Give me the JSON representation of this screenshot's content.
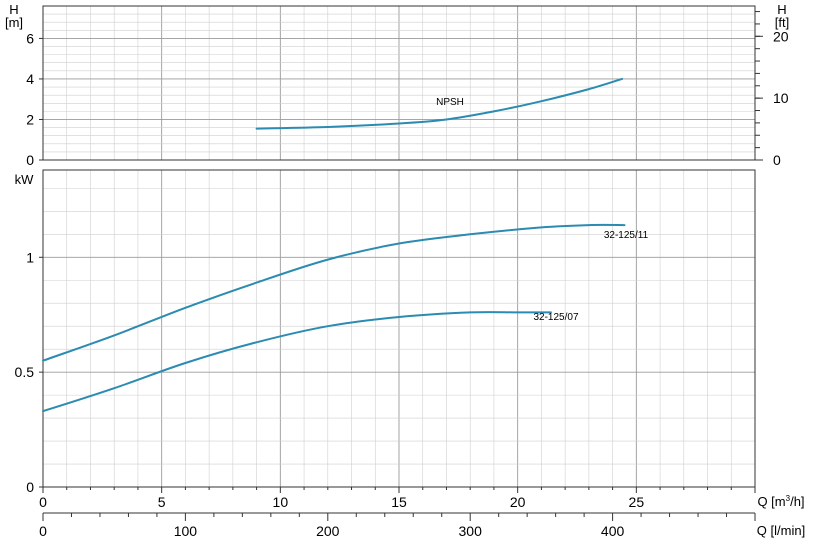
{
  "chart_data": [
    {
      "type": "line",
      "name": "npsh-panel",
      "left_axis": {
        "title": "H",
        "unit": "[m]",
        "ylim": [
          0,
          7.6
        ],
        "ticks": [
          0,
          2,
          4,
          6
        ]
      },
      "right_axis": {
        "title": "H",
        "unit": "[ft]",
        "ylim": [
          0,
          24.9
        ],
        "ticks": [
          0,
          10,
          20
        ]
      },
      "x_axis": {
        "xlim": [
          0,
          30
        ],
        "unit": "Q [m³/h]"
      },
      "grid": true,
      "series": [
        {
          "name": "NPSH",
          "x": [
            9,
            12,
            15,
            17,
            19,
            21,
            23,
            24.4
          ],
          "values": [
            1.55,
            1.63,
            1.8,
            2.0,
            2.4,
            2.9,
            3.5,
            4.0
          ]
        }
      ]
    },
    {
      "type": "line",
      "name": "power-panel",
      "left_axis": {
        "title": "kW",
        "ylim": [
          0,
          1.38
        ],
        "ticks": [
          "0",
          "0.5",
          "1"
        ]
      },
      "x_axis": {
        "xlim": [
          0,
          30
        ],
        "label_m3h": "Q [m³/h]",
        "ticks_m3h": [
          "0",
          "5",
          "10",
          "15",
          "20",
          "25"
        ],
        "label_lmin": "Q [l/min]",
        "ticks_lmin": [
          "0",
          "100",
          "200",
          "300",
          "400"
        ]
      },
      "grid": true,
      "series": [
        {
          "name": "32-125/11",
          "x": [
            0,
            3,
            6,
            9,
            12,
            15,
            18,
            21,
            23,
            24.5
          ],
          "values": [
            0.55,
            0.66,
            0.78,
            0.89,
            0.99,
            1.06,
            1.1,
            1.13,
            1.14,
            1.14
          ]
        },
        {
          "name": "32-125/07",
          "x": [
            0,
            3,
            6,
            9,
            12,
            15,
            18,
            20,
            21.4
          ],
          "values": [
            0.33,
            0.43,
            0.54,
            0.63,
            0.7,
            0.74,
            0.76,
            0.76,
            0.76
          ]
        }
      ]
    }
  ],
  "labels": {
    "h_m_title": "H",
    "h_m_unit": "[m]",
    "h_ft_title": "H",
    "h_ft_unit": "[ft]",
    "kw_title": "kW",
    "npsh": "NPSH",
    "curve_11": "32-125/11",
    "curve_07": "32-125/07",
    "q_m3h": "Q [m",
    "q_m3h_sup": "3",
    "q_m3h_end": "/h]",
    "q_lmin": "Q [l/min]"
  },
  "ticks": {
    "h_m": [
      "0",
      "2",
      "4",
      "6"
    ],
    "h_ft": [
      "0",
      "10",
      "20"
    ],
    "kw": [
      "0",
      "0.5",
      "1"
    ],
    "q_m3h": [
      "0",
      "5",
      "10",
      "15",
      "20",
      "25"
    ],
    "q_lmin": [
      "0",
      "100",
      "200",
      "300",
      "400"
    ]
  }
}
